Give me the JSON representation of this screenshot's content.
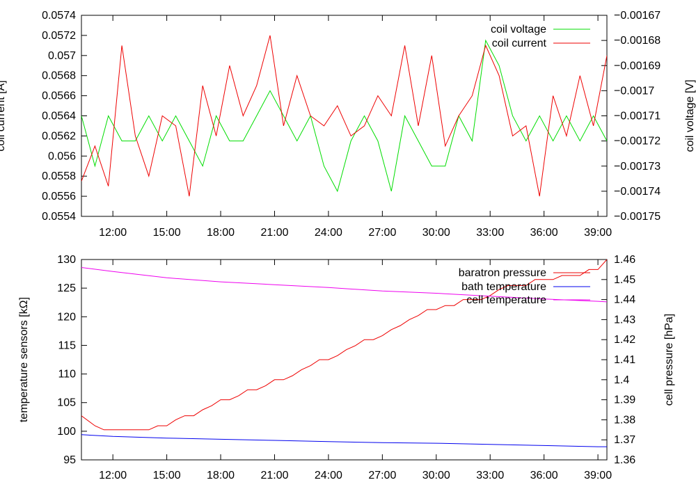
{
  "chart_data": [
    {
      "type": "line",
      "xlabel": "",
      "ylabel": "coil current [A]",
      "y2label": "coil voltage [V]",
      "xlim": [
        "10:15",
        "39:30"
      ],
      "ylim": [
        0.0554,
        0.0574
      ],
      "y2lim": [
        -0.00175,
        -0.00167
      ],
      "x_ticks": [
        "12:00",
        "15:00",
        "18:00",
        "21:00",
        "24:00",
        "27:00",
        "30:00",
        "33:00",
        "36:00",
        "39:00"
      ],
      "y_ticks": [
        "0.0554",
        "0.0556",
        "0.0558",
        "0.056",
        "0.0562",
        "0.0564",
        "0.0566",
        "0.0568",
        "0.057",
        "0.0572",
        "0.0574"
      ],
      "y2_ticks": [
        "-0.00175",
        "-0.00174",
        "-0.00173",
        "-0.00172",
        "-0.00171",
        "-0.0017",
        "-0.00169",
        "-0.00168",
        "-0.00167"
      ],
      "grid": false,
      "legend_position": "top-right",
      "series": [
        {
          "name": "coil voltage",
          "axis": "right",
          "color": "#00dd00",
          "x": [
            "10:15",
            "11:00",
            "11:45",
            "12:30",
            "13:15",
            "14:00",
            "14:45",
            "15:30",
            "16:15",
            "17:00",
            "17:45",
            "18:30",
            "19:15",
            "20:00",
            "20:45",
            "21:30",
            "22:15",
            "23:00",
            "23:45",
            "24:30",
            "25:15",
            "26:00",
            "26:45",
            "27:30",
            "28:15",
            "29:00",
            "29:45",
            "30:30",
            "31:15",
            "32:00",
            "32:45",
            "33:30",
            "34:15",
            "35:00",
            "35:45",
            "36:30",
            "37:15",
            "38:00",
            "38:45",
            "39:30"
          ],
          "values": [
            -0.00171,
            -0.00173,
            -0.00171,
            -0.00172,
            -0.00172,
            -0.00171,
            -0.00172,
            -0.00171,
            -0.00172,
            -0.00173,
            -0.00171,
            -0.00172,
            -0.00172,
            -0.00171,
            -0.0017,
            -0.00171,
            -0.00172,
            -0.00171,
            -0.00173,
            -0.00174,
            -0.00172,
            -0.00171,
            -0.00172,
            -0.00174,
            -0.00171,
            -0.00172,
            -0.00173,
            -0.00173,
            -0.00171,
            -0.00172,
            -0.00168,
            -0.00169,
            -0.00171,
            -0.00172,
            -0.00171,
            -0.00172,
            -0.00171,
            -0.00172,
            -0.00171,
            -0.00172
          ]
        },
        {
          "name": "coil current",
          "axis": "left",
          "color": "#ee0000",
          "x": [
            "10:15",
            "11:00",
            "11:45",
            "12:30",
            "13:15",
            "14:00",
            "14:45",
            "15:30",
            "16:15",
            "17:00",
            "17:45",
            "18:30",
            "19:15",
            "20:00",
            "20:45",
            "21:30",
            "22:15",
            "23:00",
            "23:45",
            "24:30",
            "25:15",
            "26:00",
            "26:45",
            "27:30",
            "28:15",
            "29:00",
            "29:45",
            "30:30",
            "31:15",
            "32:00",
            "32:45",
            "33:30",
            "34:15",
            "35:00",
            "35:45",
            "36:30",
            "37:15",
            "38:00",
            "38:45",
            "39:30"
          ],
          "values": [
            0.05575,
            0.0561,
            0.0557,
            0.0571,
            0.0562,
            0.0558,
            0.0564,
            0.0563,
            0.0556,
            0.0567,
            0.0562,
            0.0569,
            0.0564,
            0.0567,
            0.0572,
            0.0563,
            0.0568,
            0.0564,
            0.0563,
            0.0565,
            0.0562,
            0.0563,
            0.0566,
            0.0564,
            0.0571,
            0.0563,
            0.057,
            0.0561,
            0.0564,
            0.0566,
            0.0571,
            0.0568,
            0.0562,
            0.0563,
            0.0556,
            0.0566,
            0.0562,
            0.0568,
            0.0563,
            0.057
          ]
        }
      ]
    },
    {
      "type": "line",
      "xlabel": "",
      "ylabel": "temperature sensors [kΩ]",
      "y2label": "cell pressure [hPa]",
      "xlim": [
        "10:15",
        "39:30"
      ],
      "ylim": [
        95,
        130
      ],
      "y2lim": [
        1.36,
        1.46
      ],
      "x_ticks": [
        "12:00",
        "15:00",
        "18:00",
        "21:00",
        "24:00",
        "27:00",
        "30:00",
        "33:00",
        "36:00",
        "39:00"
      ],
      "y_ticks": [
        "95",
        "100",
        "105",
        "110",
        "115",
        "120",
        "125",
        "130"
      ],
      "y2_ticks": [
        "1.36",
        "1.37",
        "1.38",
        "1.39",
        "1.4",
        "1.41",
        "1.42",
        "1.43",
        "1.44",
        "1.45",
        "1.46"
      ],
      "grid": false,
      "legend_position": "top-right",
      "series": [
        {
          "name": "baratron pressure",
          "axis": "right",
          "color": "#ee0000",
          "x": [
            "10:15",
            "11:00",
            "11:30",
            "12:00",
            "12:30",
            "13:00",
            "13:30",
            "14:00",
            "14:30",
            "15:00",
            "15:30",
            "16:00",
            "16:30",
            "17:00",
            "17:30",
            "18:00",
            "18:30",
            "19:00",
            "19:30",
            "20:00",
            "20:30",
            "21:00",
            "21:30",
            "22:00",
            "22:30",
            "23:00",
            "23:30",
            "24:00",
            "24:30",
            "25:00",
            "25:30",
            "26:00",
            "26:30",
            "27:00",
            "27:30",
            "28:00",
            "28:30",
            "29:00",
            "29:30",
            "30:00",
            "30:30",
            "31:00",
            "31:30",
            "32:00",
            "32:30",
            "33:00",
            "33:30",
            "34:00",
            "34:30",
            "35:00",
            "35:30",
            "36:00",
            "36:30",
            "37:00",
            "37:30",
            "38:00",
            "38:30",
            "39:00",
            "39:30"
          ],
          "values": [
            1.382,
            1.377,
            1.375,
            1.375,
            1.375,
            1.375,
            1.375,
            1.375,
            1.377,
            1.377,
            1.38,
            1.382,
            1.382,
            1.385,
            1.387,
            1.39,
            1.39,
            1.392,
            1.395,
            1.395,
            1.397,
            1.4,
            1.4,
            1.402,
            1.405,
            1.407,
            1.41,
            1.41,
            1.412,
            1.415,
            1.417,
            1.42,
            1.42,
            1.422,
            1.425,
            1.427,
            1.43,
            1.432,
            1.435,
            1.435,
            1.437,
            1.437,
            1.44,
            1.44,
            1.44,
            1.442,
            1.445,
            1.447,
            1.447,
            1.447,
            1.45,
            1.45,
            1.45,
            1.452,
            1.452,
            1.452,
            1.455,
            1.455,
            1.46
          ]
        },
        {
          "name": "bath temperature",
          "axis": "left",
          "color": "#0000ee",
          "x": [
            "10:15",
            "12:00",
            "15:00",
            "18:00",
            "21:00",
            "24:00",
            "27:00",
            "30:00",
            "33:00",
            "36:00",
            "39:00",
            "39:30"
          ],
          "values": [
            99.4,
            99.1,
            98.8,
            98.6,
            98.4,
            98.2,
            98.0,
            97.9,
            97.7,
            97.5,
            97.3,
            97.3
          ]
        },
        {
          "name": "cell temperature",
          "axis": "left",
          "color": "#ee00ee",
          "x": [
            "10:15",
            "12:00",
            "15:00",
            "18:00",
            "21:00",
            "24:00",
            "27:00",
            "30:00",
            "33:00",
            "36:00",
            "39:00",
            "39:30"
          ],
          "values": [
            128.6,
            127.9,
            126.8,
            126.1,
            125.6,
            125.1,
            124.5,
            124.1,
            123.6,
            123.1,
            122.7,
            122.6
          ]
        }
      ]
    }
  ]
}
